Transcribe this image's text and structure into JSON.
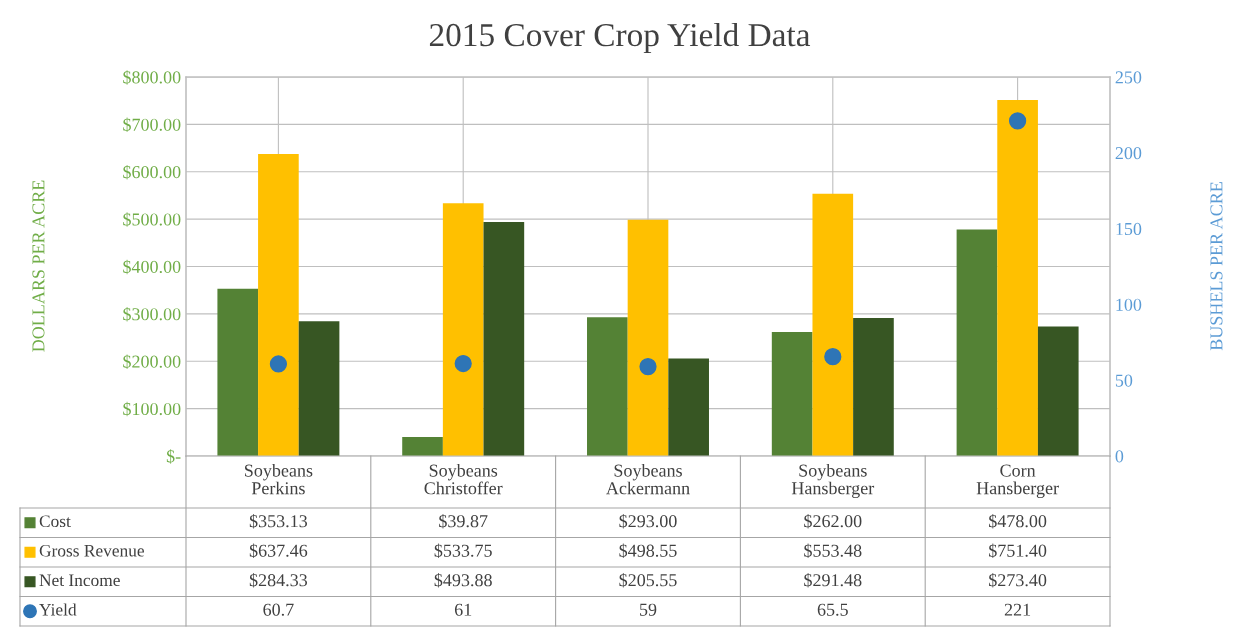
{
  "chart_data": {
    "type": "bar",
    "title": "2015 Cover Crop Yield Data",
    "ylabel": "DOLLARS PER ACRE",
    "y2label": "BUSHELS PER ACRE",
    "categories": [
      "Soybeans\nPerkins",
      "Soybeans\nChristoffer",
      "Soybeans\nAckermann",
      "Soybeans\nHansberger",
      "Corn\nHansberger"
    ],
    "series": [
      {
        "name": "Cost",
        "color": "#548235",
        "values": [
          353.13,
          39.87,
          293.0,
          262.0,
          478.0
        ],
        "value_labels": [
          "$353.13",
          "$39.87",
          "$293.00",
          "$262.00",
          "$478.00"
        ]
      },
      {
        "name": "Gross Revenue",
        "color": "#ffc000",
        "values": [
          637.46,
          533.75,
          498.55,
          553.48,
          751.4
        ],
        "value_labels": [
          "$637.46",
          "$533.75",
          "$498.55",
          "$553.48",
          "$751.40"
        ]
      },
      {
        "name": "Net Income",
        "color": "#375623",
        "values": [
          284.33,
          493.88,
          205.55,
          291.48,
          273.4
        ],
        "value_labels": [
          "$284.33",
          "$493.88",
          "$205.55",
          "$291.48",
          "$273.40"
        ]
      },
      {
        "name": "Yield",
        "type": "scatter",
        "axis": "y2",
        "color": "#2e75b6",
        "values": [
          60.7,
          61,
          59,
          65.5,
          221
        ],
        "value_labels": [
          "60.7",
          "61",
          "59",
          "65.5",
          "221"
        ]
      }
    ],
    "ylim": [
      0,
      800
    ],
    "yticks": [
      {
        "value": 0,
        "label": "$-"
      },
      {
        "value": 100,
        "label": "$100.00"
      },
      {
        "value": 200,
        "label": "$200.00"
      },
      {
        "value": 300,
        "label": "$300.00"
      },
      {
        "value": 400,
        "label": "$400.00"
      },
      {
        "value": 500,
        "label": "$500.00"
      },
      {
        "value": 600,
        "label": "$600.00"
      },
      {
        "value": 700,
        "label": "$700.00"
      },
      {
        "value": 800,
        "label": "$800.00"
      }
    ],
    "y2lim": [
      0,
      250
    ],
    "y2ticks": [
      0,
      50,
      100,
      150,
      200,
      250
    ],
    "grid": true,
    "marker": "circle",
    "legend": "bottom"
  }
}
